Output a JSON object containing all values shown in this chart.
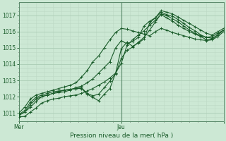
{
  "xlabel": "Pression niveau de la mer( hPa )",
  "bg_color": "#cce8d4",
  "grid_major_color": "#aaccb4",
  "grid_minor_color": "#bcd8c4",
  "line_color": "#1a5c2a",
  "ylim": [
    1010.5,
    1017.8
  ],
  "xlim": [
    0,
    48
  ],
  "y_ticks": [
    1011,
    1012,
    1013,
    1014,
    1015,
    1016,
    1017
  ],
  "x_ticks_major": [
    0,
    24,
    48
  ],
  "x_tick_labels": [
    "Mer",
    "Jeu",
    ""
  ],
  "vline_x": 24,
  "lines": [
    [
      1010.75,
      1010.78,
      1011.05,
      1011.3,
      1011.6,
      1011.75,
      1011.85,
      1011.9,
      1012.0,
      1012.05,
      1012.1,
      1012.2,
      1012.35,
      1012.5,
      1012.7,
      1012.9,
      1013.15,
      1013.45,
      1014.95,
      1015.35,
      1015.1,
      1015.3,
      1015.55,
      1016.55,
      1016.85,
      1017.2,
      1017.05,
      1016.95,
      1016.75,
      1016.5,
      1016.25,
      1016.05,
      1015.8,
      1015.65,
      1015.7,
      1015.9,
      1016.1
    ],
    [
      1010.85,
      1011.05,
      1011.5,
      1011.85,
      1012.0,
      1012.1,
      1012.2,
      1012.25,
      1012.3,
      1012.4,
      1012.55,
      1012.65,
      1012.85,
      1013.1,
      1013.45,
      1013.8,
      1014.15,
      1015.0,
      1015.45,
      1015.25,
      1015.4,
      1015.65,
      1016.35,
      1016.65,
      1016.85,
      1017.3,
      1017.2,
      1017.1,
      1016.9,
      1016.7,
      1016.5,
      1016.3,
      1016.1,
      1015.9,
      1015.8,
      1016.0,
      1016.2
    ],
    [
      1010.85,
      1011.05,
      1011.35,
      1011.7,
      1012.0,
      1012.1,
      1012.2,
      1012.3,
      1012.4,
      1012.45,
      1012.5,
      1012.55,
      1012.2,
      1012.05,
      1012.15,
      1012.55,
      1012.95,
      1013.4,
      1014.35,
      1014.85,
      1015.05,
      1015.35,
      1015.65,
      1016.1,
      1016.6,
      1017.1,
      1017.0,
      1016.8,
      1016.6,
      1016.35,
      1016.1,
      1015.9,
      1015.75,
      1015.65,
      1015.6,
      1015.8,
      1016.1
    ],
    [
      1010.9,
      1011.15,
      1011.65,
      1011.95,
      1012.1,
      1012.2,
      1012.3,
      1012.35,
      1012.4,
      1012.45,
      1012.5,
      1012.5,
      1012.15,
      1011.95,
      1011.75,
      1012.15,
      1012.5,
      1013.45,
      1014.05,
      1015.15,
      1015.5,
      1015.8,
      1016.05,
      1016.4,
      1016.7,
      1017.05,
      1016.85,
      1016.65,
      1016.4,
      1016.2,
      1016.0,
      1015.85,
      1015.7,
      1015.5,
      1015.55,
      1015.8,
      1016.1
    ],
    [
      1011.0,
      1011.35,
      1011.85,
      1012.1,
      1012.2,
      1012.3,
      1012.4,
      1012.5,
      1012.6,
      1012.7,
      1012.85,
      1013.2,
      1013.6,
      1014.15,
      1014.5,
      1015.0,
      1015.5,
      1015.95,
      1016.2,
      1016.15,
      1016.05,
      1015.95,
      1015.85,
      1015.75,
      1016.0,
      1016.2,
      1016.1,
      1015.95,
      1015.85,
      1015.75,
      1015.65,
      1015.55,
      1015.5,
      1015.45,
      1015.5,
      1015.7,
      1016.0
    ]
  ]
}
